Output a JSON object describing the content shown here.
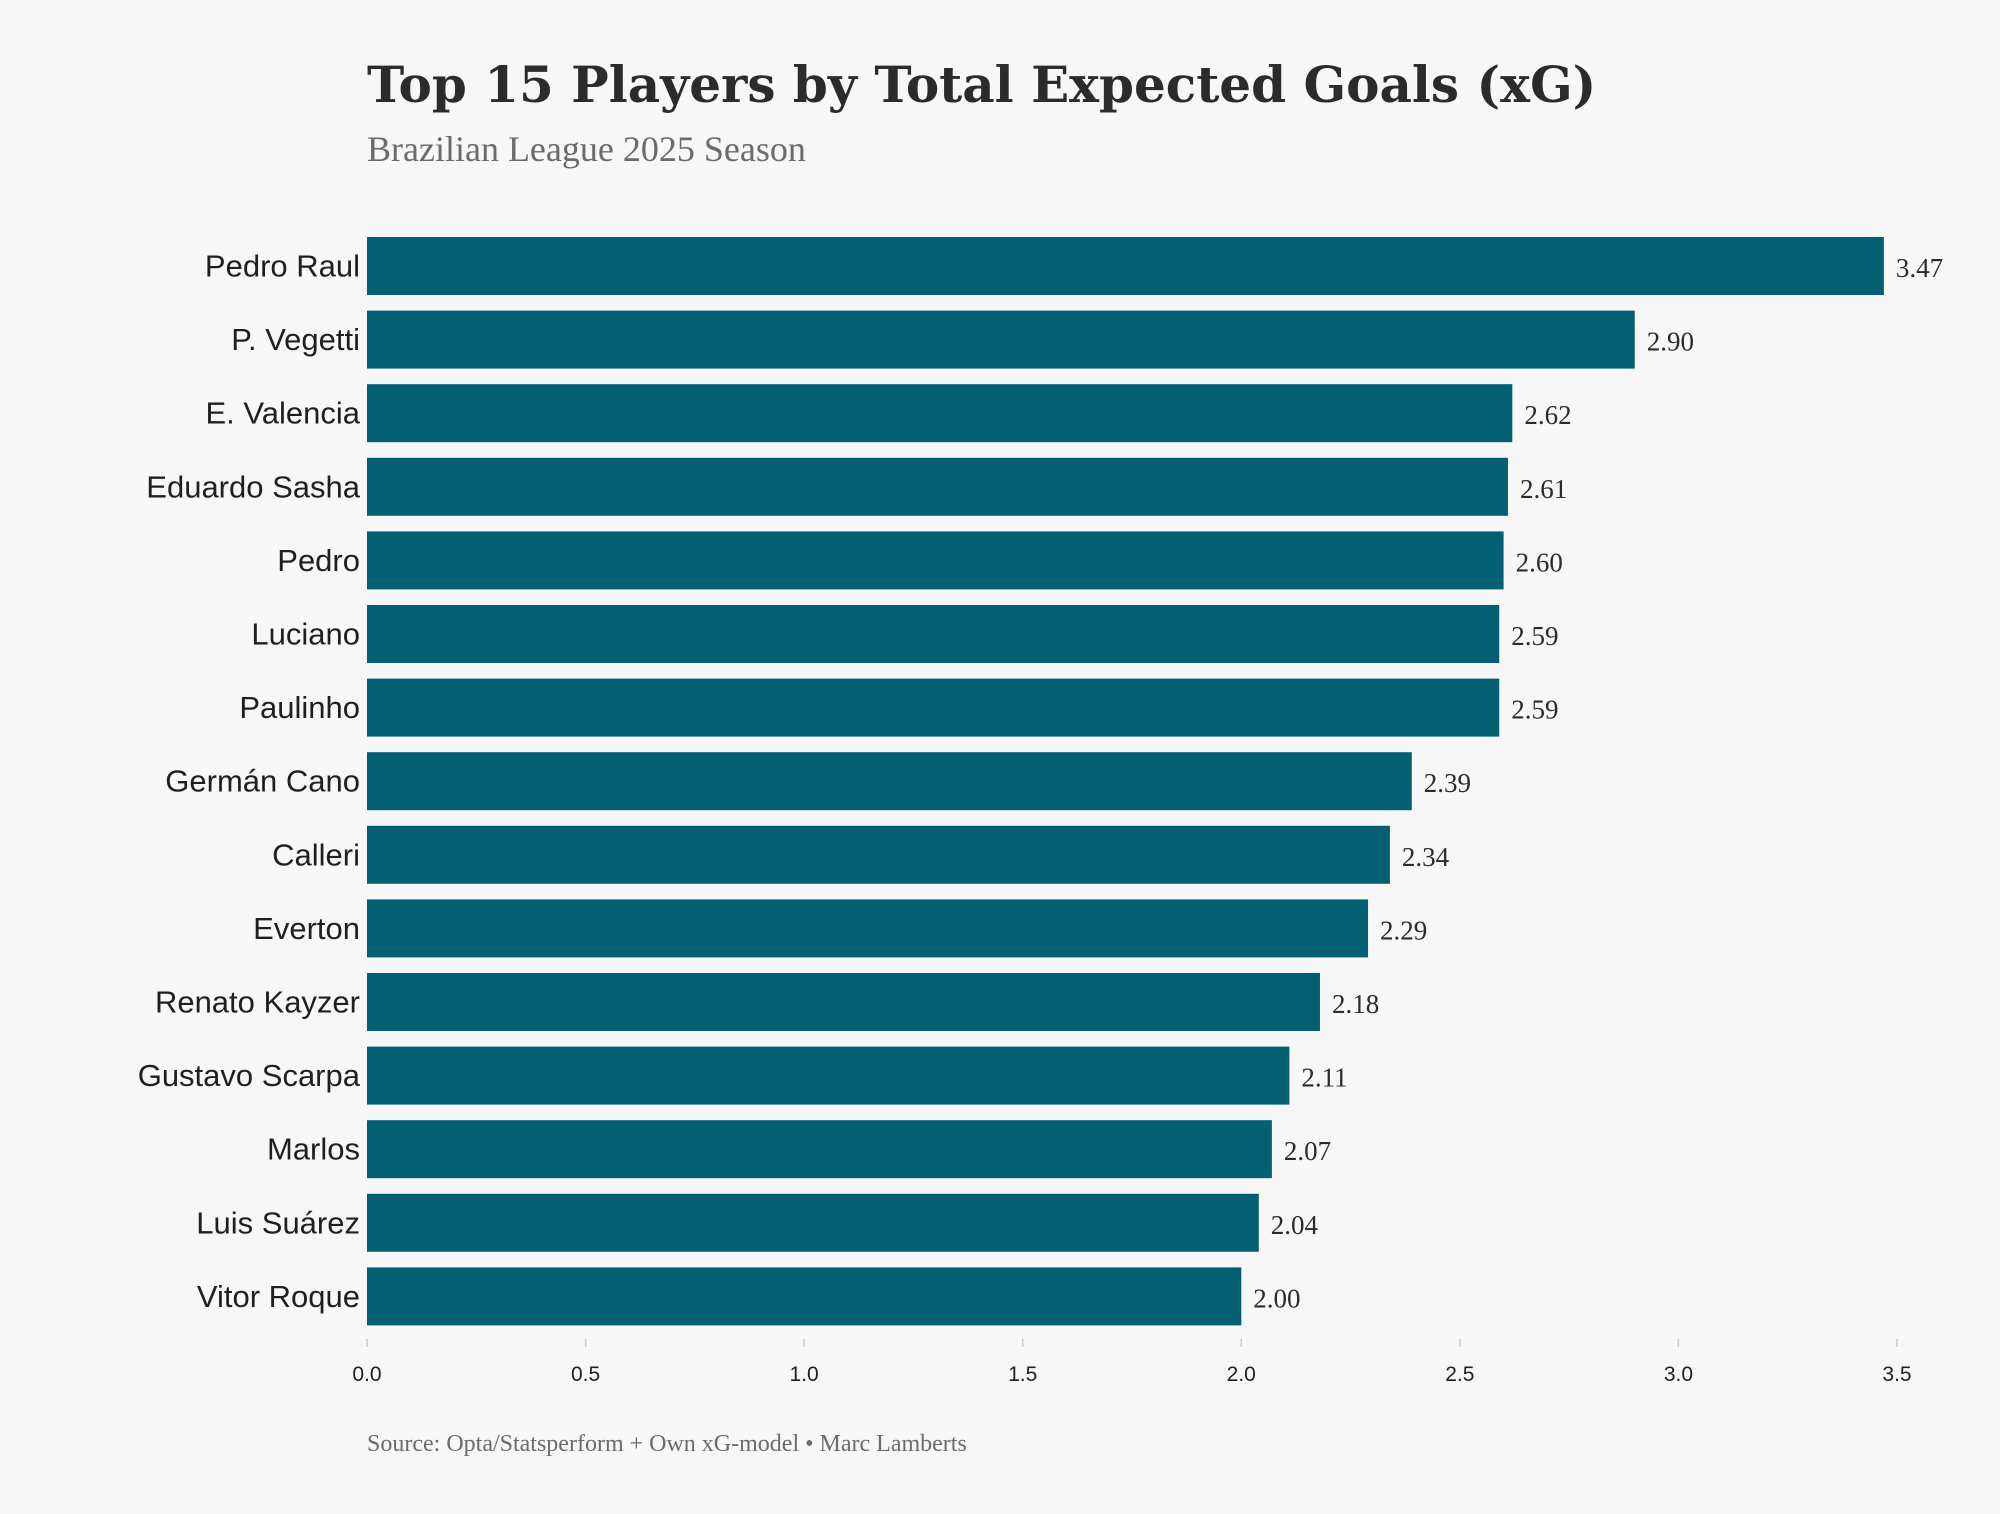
{
  "colors": {
    "background": "#f7f7f7",
    "bar": "#036072",
    "tick": "#c9c9c9"
  },
  "chart_data": {
    "type": "bar",
    "orientation": "horizontal",
    "title": "Top 15 Players by Total Expected Goals (xG)",
    "subtitle": "Brazilian League 2025 Season",
    "source": "Source: Opta/Statsperform + Own xG-model • Marc Lamberts",
    "categories": [
      "Pedro Raul",
      "P. Vegetti",
      "E. Valencia",
      "Eduardo Sasha",
      "Pedro",
      "Luciano",
      "Paulinho",
      "Germán Cano",
      "Calleri",
      "Everton",
      "Renato Kayzer",
      "Gustavo Scarpa",
      "Marlos",
      "Luis Suárez",
      "Vitor Roque"
    ],
    "values": [
      3.47,
      2.9,
      2.62,
      2.61,
      2.6,
      2.59,
      2.59,
      2.39,
      2.34,
      2.29,
      2.18,
      2.11,
      2.07,
      2.04,
      2.0
    ],
    "value_labels": [
      "3.47",
      "2.90",
      "2.62",
      "2.61",
      "2.60",
      "2.59",
      "2.59",
      "2.39",
      "2.34",
      "2.29",
      "2.18",
      "2.11",
      "2.07",
      "2.04",
      "2.00"
    ],
    "xlim": [
      0,
      3.5
    ],
    "xticks": [
      0.0,
      0.5,
      1.0,
      1.5,
      2.0,
      2.5,
      3.0,
      3.5
    ],
    "xtick_labels": [
      "0.0",
      "0.5",
      "1.0",
      "1.5",
      "2.0",
      "2.5",
      "3.0",
      "3.5"
    ],
    "xlabel": "",
    "ylabel": "",
    "grid": false,
    "legend": "none"
  }
}
